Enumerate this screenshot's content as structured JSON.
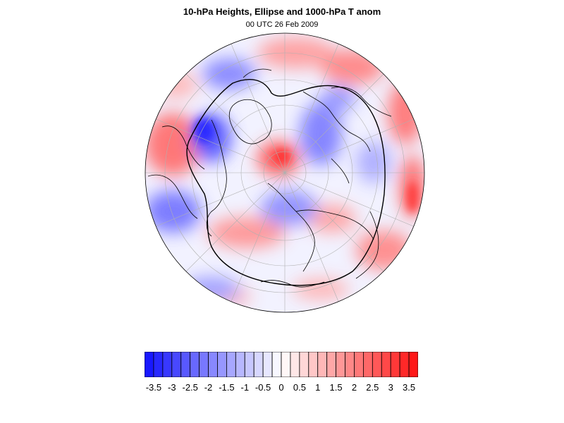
{
  "title": "10-hPa Heights, Ellipse and 1000-hPa T anom",
  "subtitle": "00 UTC 26 Feb 2009",
  "projection": "north-polar-stereographic-disc",
  "colors": {
    "negative_max": "#1010ff",
    "neutral": "#ffffff",
    "positive_max": "#ff1010",
    "ellipse_contour": "#000000",
    "coastline": "#000000",
    "graticule": "#b0b0b0"
  },
  "colorbar": {
    "levels": [
      -3.75,
      -3.5,
      -3.25,
      -3,
      -2.75,
      -2.5,
      -2.25,
      -2,
      -1.75,
      -1.5,
      -1.25,
      -1,
      -0.75,
      -0.5,
      -0.25,
      0,
      0.25,
      0.5,
      0.75,
      1,
      1.25,
      1.5,
      1.75,
      2,
      2.25,
      2.5,
      2.75,
      3,
      3.25,
      3.5,
      3.75
    ],
    "tick_labels": [
      "-3.5",
      "-3",
      "-2.5",
      "-2",
      "-1.5",
      "-1",
      "-0.5",
      "0",
      "0.5",
      "1",
      "1.5",
      "2",
      "2.5",
      "3",
      "3.5"
    ],
    "tick_values": [
      -3.5,
      -3,
      -2.5,
      -2,
      -1.5,
      -1,
      -0.5,
      0,
      0.5,
      1,
      1.5,
      2,
      2.5,
      3,
      3.5
    ]
  }
}
